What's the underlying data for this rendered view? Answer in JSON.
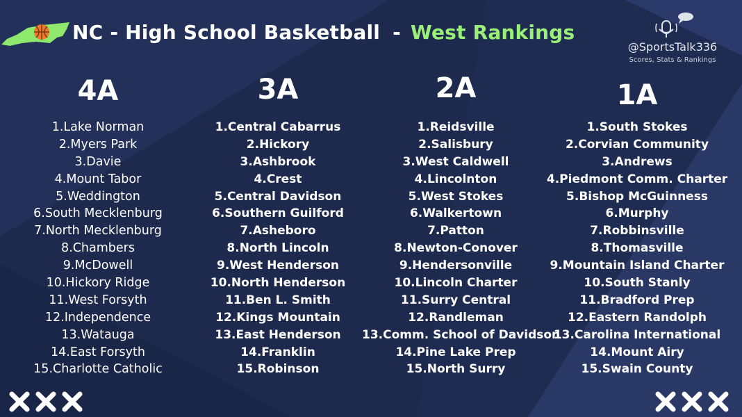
{
  "header": {
    "title": "NC - High School Basketball",
    "separator": "-",
    "subtitle": "West  Rankings"
  },
  "brand": {
    "handle": "@SportsTalk336",
    "tagline": "Scores, Stats & Rankings"
  },
  "colors": {
    "background": "#1d2a4d",
    "accent_green": "#9bf07a",
    "basketball_orange": "#f07a2a"
  },
  "divisions": [
    {
      "name": "4A",
      "teams": [
        "1.Lake Norman",
        "2.Myers Park",
        "3.Davie",
        "4.Mount Tabor",
        "5.Weddington",
        "6.South Mecklenburg",
        "7.North Mecklenburg",
        "8.Chambers",
        "9.McDowell",
        "10.Hickory Ridge",
        "11.West Forsyth",
        "12.Independence",
        "13.Watauga",
        "14.East Forsyth",
        "15.Charlotte Catholic"
      ]
    },
    {
      "name": "3A",
      "teams": [
        "1.Central Cabarrus",
        "2.Hickory",
        "3.Ashbrook",
        "4.Crest",
        "5.Central Davidson",
        "6.Southern Guilford",
        "7.Asheboro",
        "8.North Lincoln",
        "9.West Henderson",
        "10.North Henderson",
        "11.Ben L. Smith",
        "12.Kings Mountain",
        "13.East Henderson",
        "14.Franklin",
        "15.Robinson"
      ]
    },
    {
      "name": "2A",
      "teams": [
        "1.Reidsville",
        "2.Salisbury",
        "3.West Caldwell",
        "4.Lincolnton",
        "5.West Stokes",
        "6.Walkertown",
        "7.Patton",
        "8.Newton-Conover",
        "9.Hendersonville",
        "10.Lincoln Charter",
        "11.Surry Central",
        "12.Randleman",
        "13.Comm. School of Davidson",
        "14.Pine Lake Prep",
        "15.North Surry"
      ]
    },
    {
      "name": "1A",
      "teams": [
        "1.South Stokes",
        "2.Corvian Community",
        "3.Andrews",
        "4.Piedmont Comm. Charter",
        "5.Bishop McGuinness",
        "6.Murphy",
        "7.Robbinsville",
        "8.Thomasville",
        "9.Mountain Island Charter",
        "10.South Stanly",
        "11.Bradford Prep",
        "12.Eastern Randolph",
        "13.Carolina International",
        "14.Mount Airy",
        "15.Swain County"
      ]
    }
  ],
  "icons": {
    "state": "north-carolina-basketball-icon",
    "podcast": "podcast-microphone-icon",
    "marks": "x-mark-icon"
  }
}
